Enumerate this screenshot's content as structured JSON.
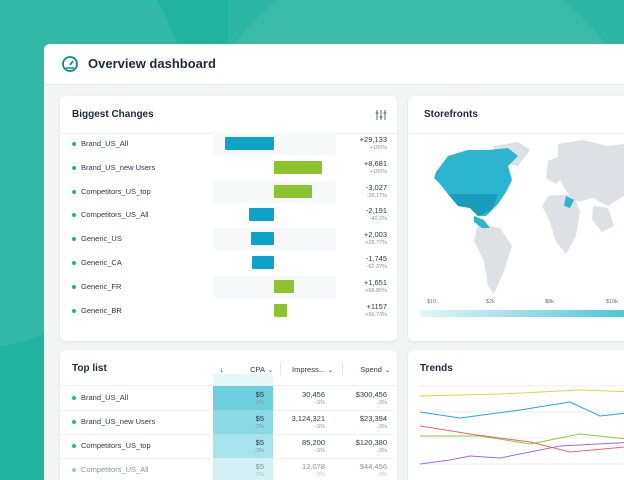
{
  "header": {
    "title": "Overview dashboard"
  },
  "biggest_changes": {
    "title": "Biggest Changes",
    "rows": [
      {
        "name": "Brand_US_All",
        "value": "+29,133",
        "change": "+100%"
      },
      {
        "name": "Brand_US_new Users",
        "value": "+8,681",
        "change": "+100%"
      },
      {
        "name": "Competitors_US_top",
        "value": "-3,027",
        "change": "-28,17%"
      },
      {
        "name": "Competitors_US_All",
        "value": "-2,191",
        "change": "-40.2%"
      },
      {
        "name": "Generic_US",
        "value": "+2,003",
        "change": "+28.77%"
      },
      {
        "name": "Generic_CA",
        "value": "-1,745",
        "change": "-62.37%"
      },
      {
        "name": "Generic_FR",
        "value": "+1,651",
        "change": "+68.85%"
      },
      {
        "name": "Generic_BR",
        "value": "+1157",
        "change": "+56.73%"
      }
    ]
  },
  "storefronts": {
    "title": "Storefronts",
    "legend": [
      "$10",
      "$2k",
      "$8k",
      "$10k"
    ]
  },
  "top_list": {
    "title": "Top list",
    "columns": [
      "CPA",
      "Impress...",
      "Spend"
    ],
    "rows": [
      {
        "name": "Brand_US_All",
        "cpa": "$5",
        "cpa_change": "-3%",
        "impressions": "30,456",
        "impressions_change": "-3%",
        "spend": "$300,456",
        "spend_change": "-3%"
      },
      {
        "name": "Brand_US_new Users",
        "cpa": "$5",
        "cpa_change": "-3%",
        "impressions": "3,124,321",
        "impressions_change": "-3%",
        "spend": "$23,394",
        "spend_change": "-3%"
      },
      {
        "name": "Competitors_US_top",
        "cpa": "$5",
        "cpa_change": "-3%",
        "impressions": "85,200",
        "impressions_change": "-3%",
        "spend": "$120,380",
        "spend_change": "-3%"
      },
      {
        "name": "Competitors_US_All",
        "cpa": "$5",
        "cpa_change": "-3%",
        "impressions": "12,078",
        "impressions_change": "-3%",
        "spend": "$44,456",
        "spend_change": "-3%"
      }
    ]
  },
  "trends": {
    "title": "Trends"
  }
}
